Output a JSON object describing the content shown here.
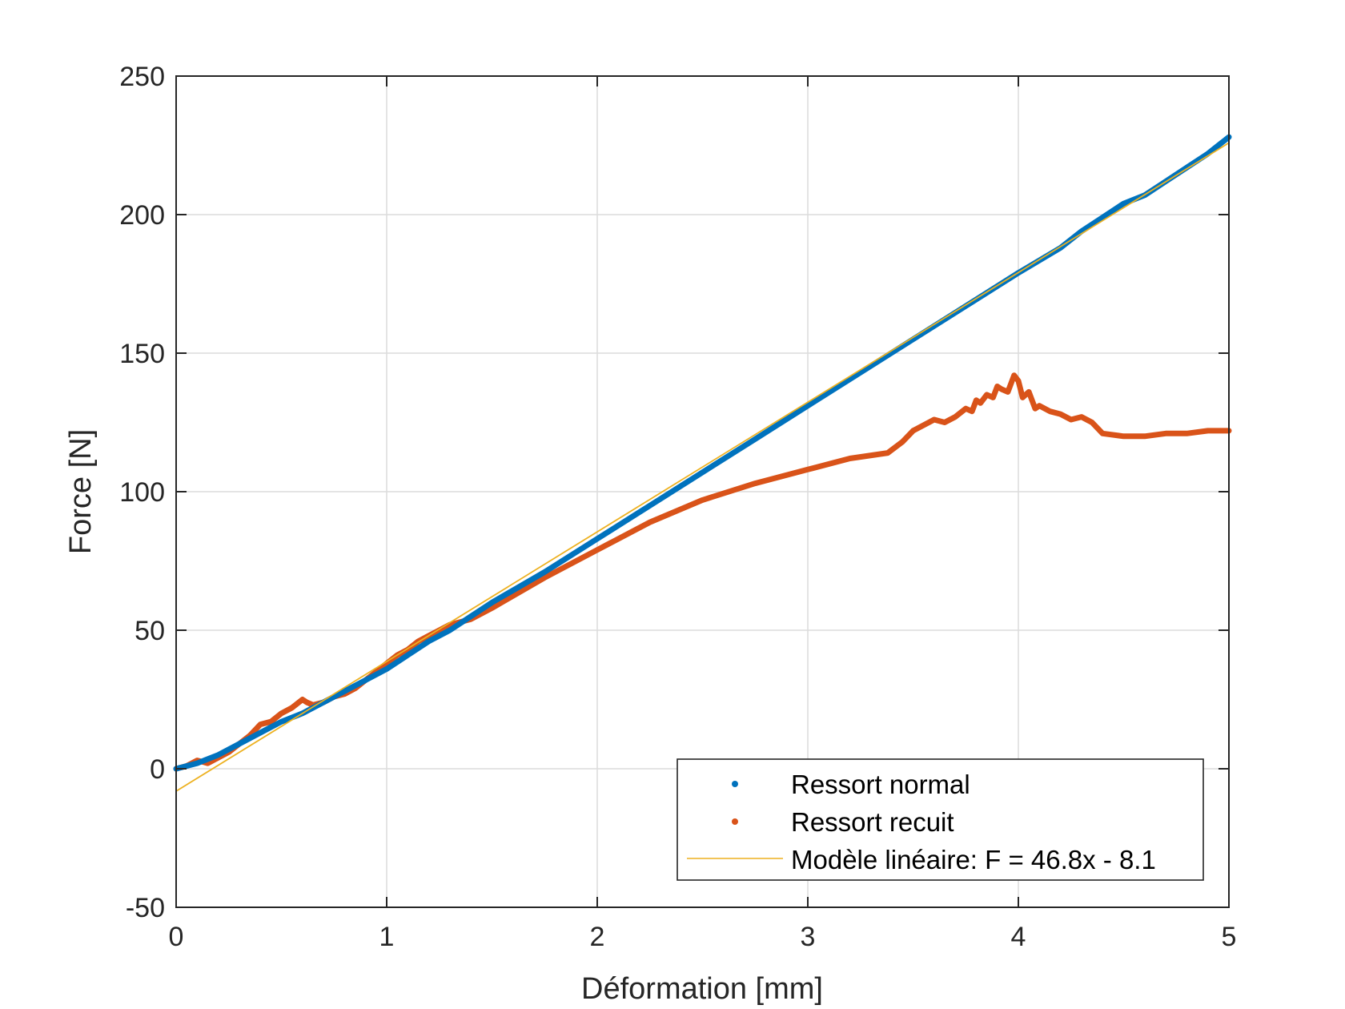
{
  "chart_data": {
    "type": "line",
    "xlabel": "Déformation [mm]",
    "ylabel": "Force [N]",
    "xlim": [
      0,
      5
    ],
    "ylim": [
      -50,
      250
    ],
    "xticks": [
      0,
      1,
      2,
      3,
      4,
      5
    ],
    "yticks": [
      -50,
      0,
      50,
      100,
      150,
      200,
      250
    ],
    "xtick_labels": [
      "0",
      "1",
      "2",
      "3",
      "4",
      "5"
    ],
    "ytick_labels": [
      "-50",
      "0",
      "50",
      "100",
      "150",
      "200",
      "250"
    ],
    "grid": true,
    "legend_position": "bottom-right",
    "series": [
      {
        "name": "Ressort normal",
        "color": "#0072BD",
        "style": "dots",
        "x": [
          0,
          0.1,
          0.2,
          0.3,
          0.4,
          0.5,
          0.6,
          0.7,
          0.8,
          0.9,
          1.0,
          1.1,
          1.2,
          1.3,
          1.4,
          1.5,
          1.75,
          2.0,
          2.25,
          2.5,
          2.75,
          3.0,
          3.25,
          3.5,
          3.75,
          4.0,
          4.2,
          4.3,
          4.4,
          4.5,
          4.6,
          4.7,
          4.8,
          4.9,
          5.0
        ],
        "y": [
          0,
          2,
          5,
          9,
          13,
          17,
          20,
          24,
          28,
          32,
          36,
          41,
          46,
          50,
          55,
          60,
          71,
          83,
          95,
          107,
          119,
          131,
          143,
          155,
          167,
          179,
          188,
          194,
          199,
          204,
          207,
          212,
          217,
          222,
          228
        ]
      },
      {
        "name": "Ressort recuit",
        "color": "#D95319",
        "style": "dots",
        "x": [
          0,
          0.05,
          0.1,
          0.15,
          0.2,
          0.25,
          0.3,
          0.35,
          0.4,
          0.45,
          0.5,
          0.55,
          0.6,
          0.62,
          0.65,
          0.7,
          0.75,
          0.8,
          0.85,
          0.9,
          0.95,
          1.0,
          1.05,
          1.1,
          1.15,
          1.2,
          1.25,
          1.3,
          1.4,
          1.5,
          1.75,
          2.0,
          2.25,
          2.5,
          2.75,
          3.0,
          3.2,
          3.38,
          3.45,
          3.5,
          3.6,
          3.65,
          3.7,
          3.75,
          3.78,
          3.8,
          3.82,
          3.85,
          3.88,
          3.9,
          3.92,
          3.95,
          3.98,
          4.0,
          4.02,
          4.05,
          4.08,
          4.1,
          4.15,
          4.2,
          4.25,
          4.3,
          4.35,
          4.4,
          4.5,
          4.6,
          4.7,
          4.8,
          4.9,
          5.0
        ],
        "y": [
          0,
          1,
          3,
          2,
          4,
          6,
          9,
          12,
          16,
          17,
          20,
          22,
          25,
          24,
          23,
          24,
          26,
          27,
          29,
          32,
          35,
          38,
          41,
          43,
          46,
          48,
          50,
          52,
          54,
          58,
          69,
          79,
          89,
          97,
          103,
          108,
          112,
          114,
          118,
          122,
          126,
          125,
          127,
          130,
          129,
          133,
          132,
          135,
          134,
          138,
          137,
          136,
          142,
          140,
          134,
          136,
          130,
          131,
          129,
          128,
          126,
          127,
          125,
          121,
          120,
          120,
          121,
          121,
          122,
          122
        ]
      },
      {
        "name": "Modèle linéaire: F = 46.8x - 8.1",
        "color": "#EDB120",
        "style": "line",
        "x": [
          0,
          5
        ],
        "y": [
          -8.1,
          225.9
        ]
      }
    ]
  }
}
